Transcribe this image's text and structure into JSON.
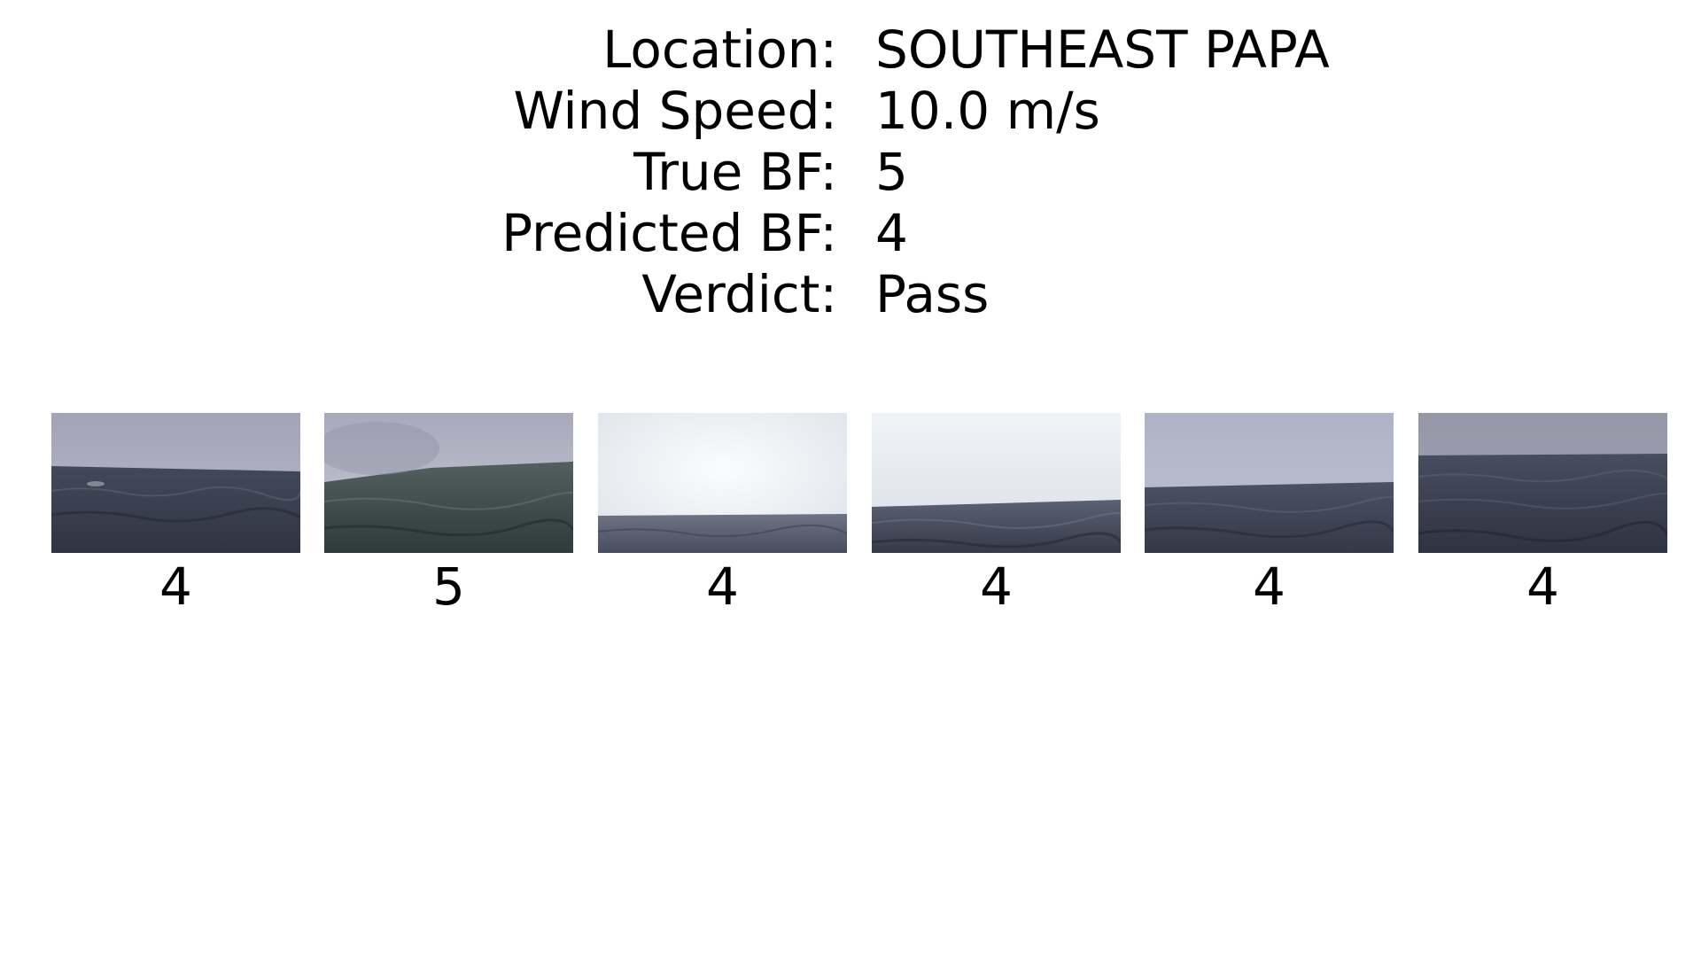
{
  "details": [
    {
      "label": "Location:",
      "value": "SOUTHEAST PAPA"
    },
    {
      "label": "Wind Speed:",
      "value": "10.0 m/s"
    },
    {
      "label": "True BF:",
      "value": "5"
    },
    {
      "label": "Predicted BF:",
      "value": "4"
    },
    {
      "label": "Verdict:",
      "value": "Pass"
    }
  ],
  "thumbnails": [
    {
      "label": "4",
      "sky": "#a9aabd",
      "sea": "#3b4150"
    },
    {
      "label": "5",
      "sky": "#b8b9c8",
      "sea": "#394442"
    },
    {
      "label": "4",
      "sky": "#eef0f5",
      "sea": "#565d6e"
    },
    {
      "label": "4",
      "sky": "#e6e8f0",
      "sea": "#414758"
    },
    {
      "label": "4",
      "sky": "#b2b6c9",
      "sea": "#3d4355"
    },
    {
      "label": "4",
      "sky": "#999aab",
      "sea": "#363c4c"
    }
  ]
}
